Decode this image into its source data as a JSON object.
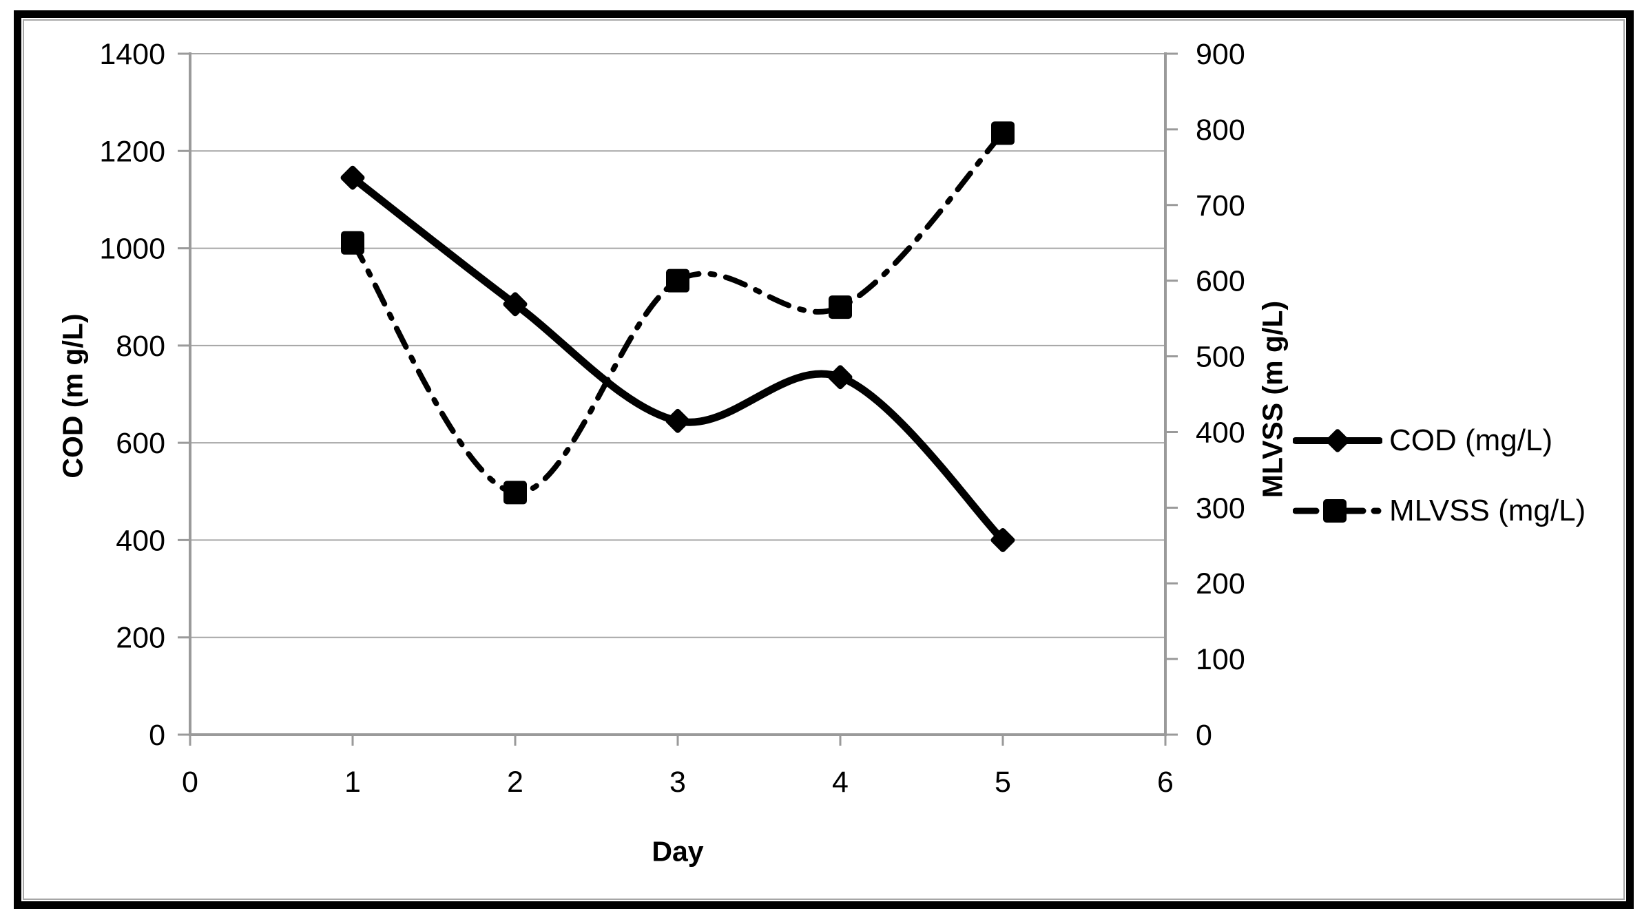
{
  "chart_data": {
    "type": "line",
    "title": "",
    "x": [
      1,
      2,
      3,
      4,
      5
    ],
    "series": [
      {
        "name": "COD (mg/L)",
        "axis": "left",
        "marker": "diamond",
        "line_style": "solid",
        "values": [
          1145,
          885,
          645,
          735,
          400
        ]
      },
      {
        "name": "MLVSS (mg/L)",
        "axis": "right",
        "marker": "square",
        "line_style": "dash-dot",
        "values": [
          650,
          320,
          600,
          565,
          795
        ]
      }
    ],
    "xlabel": "Day",
    "ylabel_left": "COD (m g/L)",
    "ylabel_right": "MLVSS (m g/L)",
    "xlim": [
      0,
      6
    ],
    "ylim_left": [
      0,
      1400
    ],
    "ylim_right": [
      0,
      900
    ],
    "x_ticks": [
      0,
      1,
      2,
      3,
      4,
      5,
      6
    ],
    "left_ticks": [
      0,
      200,
      400,
      600,
      800,
      1000,
      1200,
      1400
    ],
    "right_ticks": [
      0,
      100,
      200,
      300,
      400,
      500,
      600,
      700,
      800,
      900
    ],
    "grid": "horizontal",
    "legend_position": "middle-right",
    "colors": {
      "series": "#000000",
      "grid": "#a6a6a6",
      "axis": "#9a9a9a",
      "text": "#000000",
      "background": "#ffffff"
    }
  }
}
